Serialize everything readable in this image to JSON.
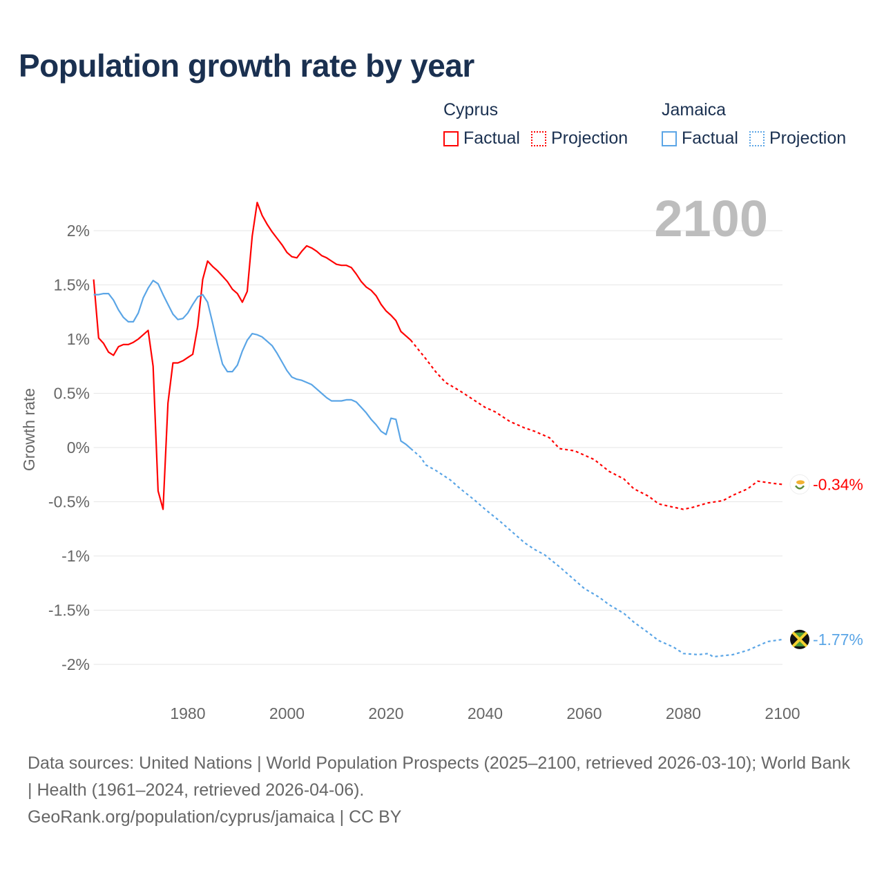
{
  "title": "Population growth rate by year",
  "legend": {
    "groups": [
      {
        "country": "Cyprus",
        "color": "#ff0000",
        "items": [
          "Factual",
          "Projection"
        ]
      },
      {
        "country": "Jamaica",
        "color": "#5aa5e6",
        "items": [
          "Factual",
          "Projection"
        ]
      }
    ]
  },
  "footer": {
    "sources": "Data sources: United Nations | World Population Prospects (2025–2100, retrieved 2026-03-10); World Bank | Health (1961–2024, retrieved 2026-04-06).",
    "credit": "GeoRank.org/population/cyprus/jamaica | CC BY"
  },
  "chart_data": {
    "type": "line",
    "title": "Population growth rate by year",
    "xlabel": "",
    "ylabel": "Growth rate",
    "year_label": "2100",
    "xlim": [
      1961,
      2100
    ],
    "ylim": [
      -2.2,
      2.3
    ],
    "xticks": [
      1980,
      2000,
      2020,
      2040,
      2060,
      2080,
      2100
    ],
    "yticks": [
      2,
      1.5,
      1,
      0.5,
      0,
      -0.5,
      -1,
      -1.5,
      -2
    ],
    "ytick_labels": [
      "2%",
      "1.5%",
      "1%",
      "0.5%",
      "0%",
      "-0.5%",
      "-1%",
      "-1.5%",
      "-2%"
    ],
    "grid": true,
    "series": [
      {
        "name": "Cyprus Factual",
        "color": "#ff0000",
        "dashed": false,
        "x": [
          1961,
          1962,
          1963,
          1964,
          1965,
          1966,
          1967,
          1968,
          1969,
          1970,
          1971,
          1972,
          1973,
          1974,
          1975,
          1976,
          1977,
          1978,
          1979,
          1980,
          1981,
          1982,
          1983,
          1984,
          1985,
          1986,
          1987,
          1988,
          1989,
          1990,
          1991,
          1992,
          1993,
          1994,
          1995,
          1996,
          1997,
          1998,
          1999,
          2000,
          2001,
          2002,
          2003,
          2004,
          2005,
          2006,
          2007,
          2008,
          2009,
          2010,
          2011,
          2012,
          2013,
          2014,
          2015,
          2016,
          2017,
          2018,
          2019,
          2020,
          2021,
          2022,
          2023,
          2024,
          2025
        ],
        "y": [
          1.55,
          1.01,
          0.96,
          0.88,
          0.85,
          0.93,
          0.95,
          0.95,
          0.97,
          1.0,
          1.04,
          1.08,
          0.75,
          -0.4,
          -0.57,
          0.41,
          0.78,
          0.78,
          0.8,
          0.83,
          0.86,
          1.12,
          1.55,
          1.72,
          1.67,
          1.63,
          1.58,
          1.53,
          1.46,
          1.42,
          1.34,
          1.44,
          1.95,
          2.26,
          2.14,
          2.06,
          1.99,
          1.93,
          1.87,
          1.8,
          1.76,
          1.75,
          1.81,
          1.86,
          1.84,
          1.81,
          1.77,
          1.75,
          1.72,
          1.69,
          1.68,
          1.68,
          1.66,
          1.6,
          1.53,
          1.48,
          1.45,
          1.4,
          1.32,
          1.26,
          1.22,
          1.17,
          1.07,
          1.03,
          0.99
        ]
      },
      {
        "name": "Cyprus Projection",
        "color": "#ff0000",
        "dashed": true,
        "x": [
          2025,
          2028,
          2030,
          2032,
          2035,
          2038,
          2040,
          2042,
          2045,
          2048,
          2050,
          2053,
          2055,
          2058,
          2060,
          2062,
          2065,
          2068,
          2070,
          2073,
          2075,
          2078,
          2080,
          2082,
          2085,
          2088,
          2090,
          2093,
          2095,
          2098,
          2100
        ],
        "y": [
          0.99,
          0.82,
          0.7,
          0.6,
          0.52,
          0.43,
          0.37,
          0.33,
          0.24,
          0.18,
          0.15,
          0.09,
          -0.01,
          -0.03,
          -0.07,
          -0.11,
          -0.22,
          -0.29,
          -0.38,
          -0.45,
          -0.52,
          -0.55,
          -0.57,
          -0.55,
          -0.51,
          -0.49,
          -0.44,
          -0.38,
          -0.31,
          -0.33,
          -0.34
        ]
      },
      {
        "name": "Jamaica Factual",
        "color": "#5aa5e6",
        "dashed": false,
        "x": [
          1961,
          1962,
          1963,
          1964,
          1965,
          1966,
          1967,
          1968,
          1969,
          1970,
          1971,
          1972,
          1973,
          1974,
          1975,
          1976,
          1977,
          1978,
          1979,
          1980,
          1981,
          1982,
          1983,
          1984,
          1985,
          1986,
          1987,
          1988,
          1989,
          1990,
          1991,
          1992,
          1993,
          1994,
          1995,
          1996,
          1997,
          1998,
          1999,
          2000,
          2001,
          2002,
          2003,
          2004,
          2005,
          2006,
          2007,
          2008,
          2009,
          2010,
          2011,
          2012,
          2013,
          2014,
          2015,
          2016,
          2017,
          2018,
          2019,
          2020,
          2021,
          2022,
          2023,
          2024,
          2025
        ],
        "y": [
          1.41,
          1.41,
          1.42,
          1.42,
          1.36,
          1.27,
          1.2,
          1.16,
          1.16,
          1.24,
          1.38,
          1.47,
          1.54,
          1.51,
          1.41,
          1.32,
          1.23,
          1.18,
          1.19,
          1.24,
          1.32,
          1.39,
          1.41,
          1.34,
          1.15,
          0.95,
          0.77,
          0.7,
          0.7,
          0.76,
          0.89,
          0.99,
          1.05,
          1.04,
          1.02,
          0.98,
          0.94,
          0.87,
          0.79,
          0.71,
          0.65,
          0.63,
          0.62,
          0.6,
          0.58,
          0.54,
          0.5,
          0.46,
          0.43,
          0.43,
          0.43,
          0.44,
          0.44,
          0.42,
          0.37,
          0.32,
          0.26,
          0.21,
          0.15,
          0.12,
          0.27,
          0.26,
          0.06,
          0.03,
          -0.01
        ]
      },
      {
        "name": "Jamaica Projection",
        "color": "#5aa5e6",
        "dashed": true,
        "x": [
          2025,
          2027,
          2028,
          2030,
          2033,
          2035,
          2038,
          2040,
          2043,
          2045,
          2048,
          2050,
          2052,
          2055,
          2058,
          2060,
          2063,
          2065,
          2068,
          2070,
          2073,
          2075,
          2078,
          2080,
          2083,
          2085,
          2086,
          2088,
          2090,
          2093,
          2095,
          2097,
          2100
        ],
        "y": [
          -0.01,
          -0.09,
          -0.16,
          -0.21,
          -0.3,
          -0.38,
          -0.49,
          -0.57,
          -0.68,
          -0.76,
          -0.88,
          -0.94,
          -0.99,
          -1.1,
          -1.22,
          -1.3,
          -1.38,
          -1.45,
          -1.53,
          -1.61,
          -1.71,
          -1.78,
          -1.84,
          -1.9,
          -1.91,
          -1.9,
          -1.93,
          -1.92,
          -1.91,
          -1.87,
          -1.83,
          -1.79,
          -1.77
        ]
      }
    ],
    "end_labels": [
      {
        "country": "Cyprus",
        "value": -0.34,
        "label": "-0.34%",
        "color": "#ff0000"
      },
      {
        "country": "Jamaica",
        "value": -1.77,
        "label": "-1.77%",
        "color": "#5aa5e6"
      }
    ]
  }
}
